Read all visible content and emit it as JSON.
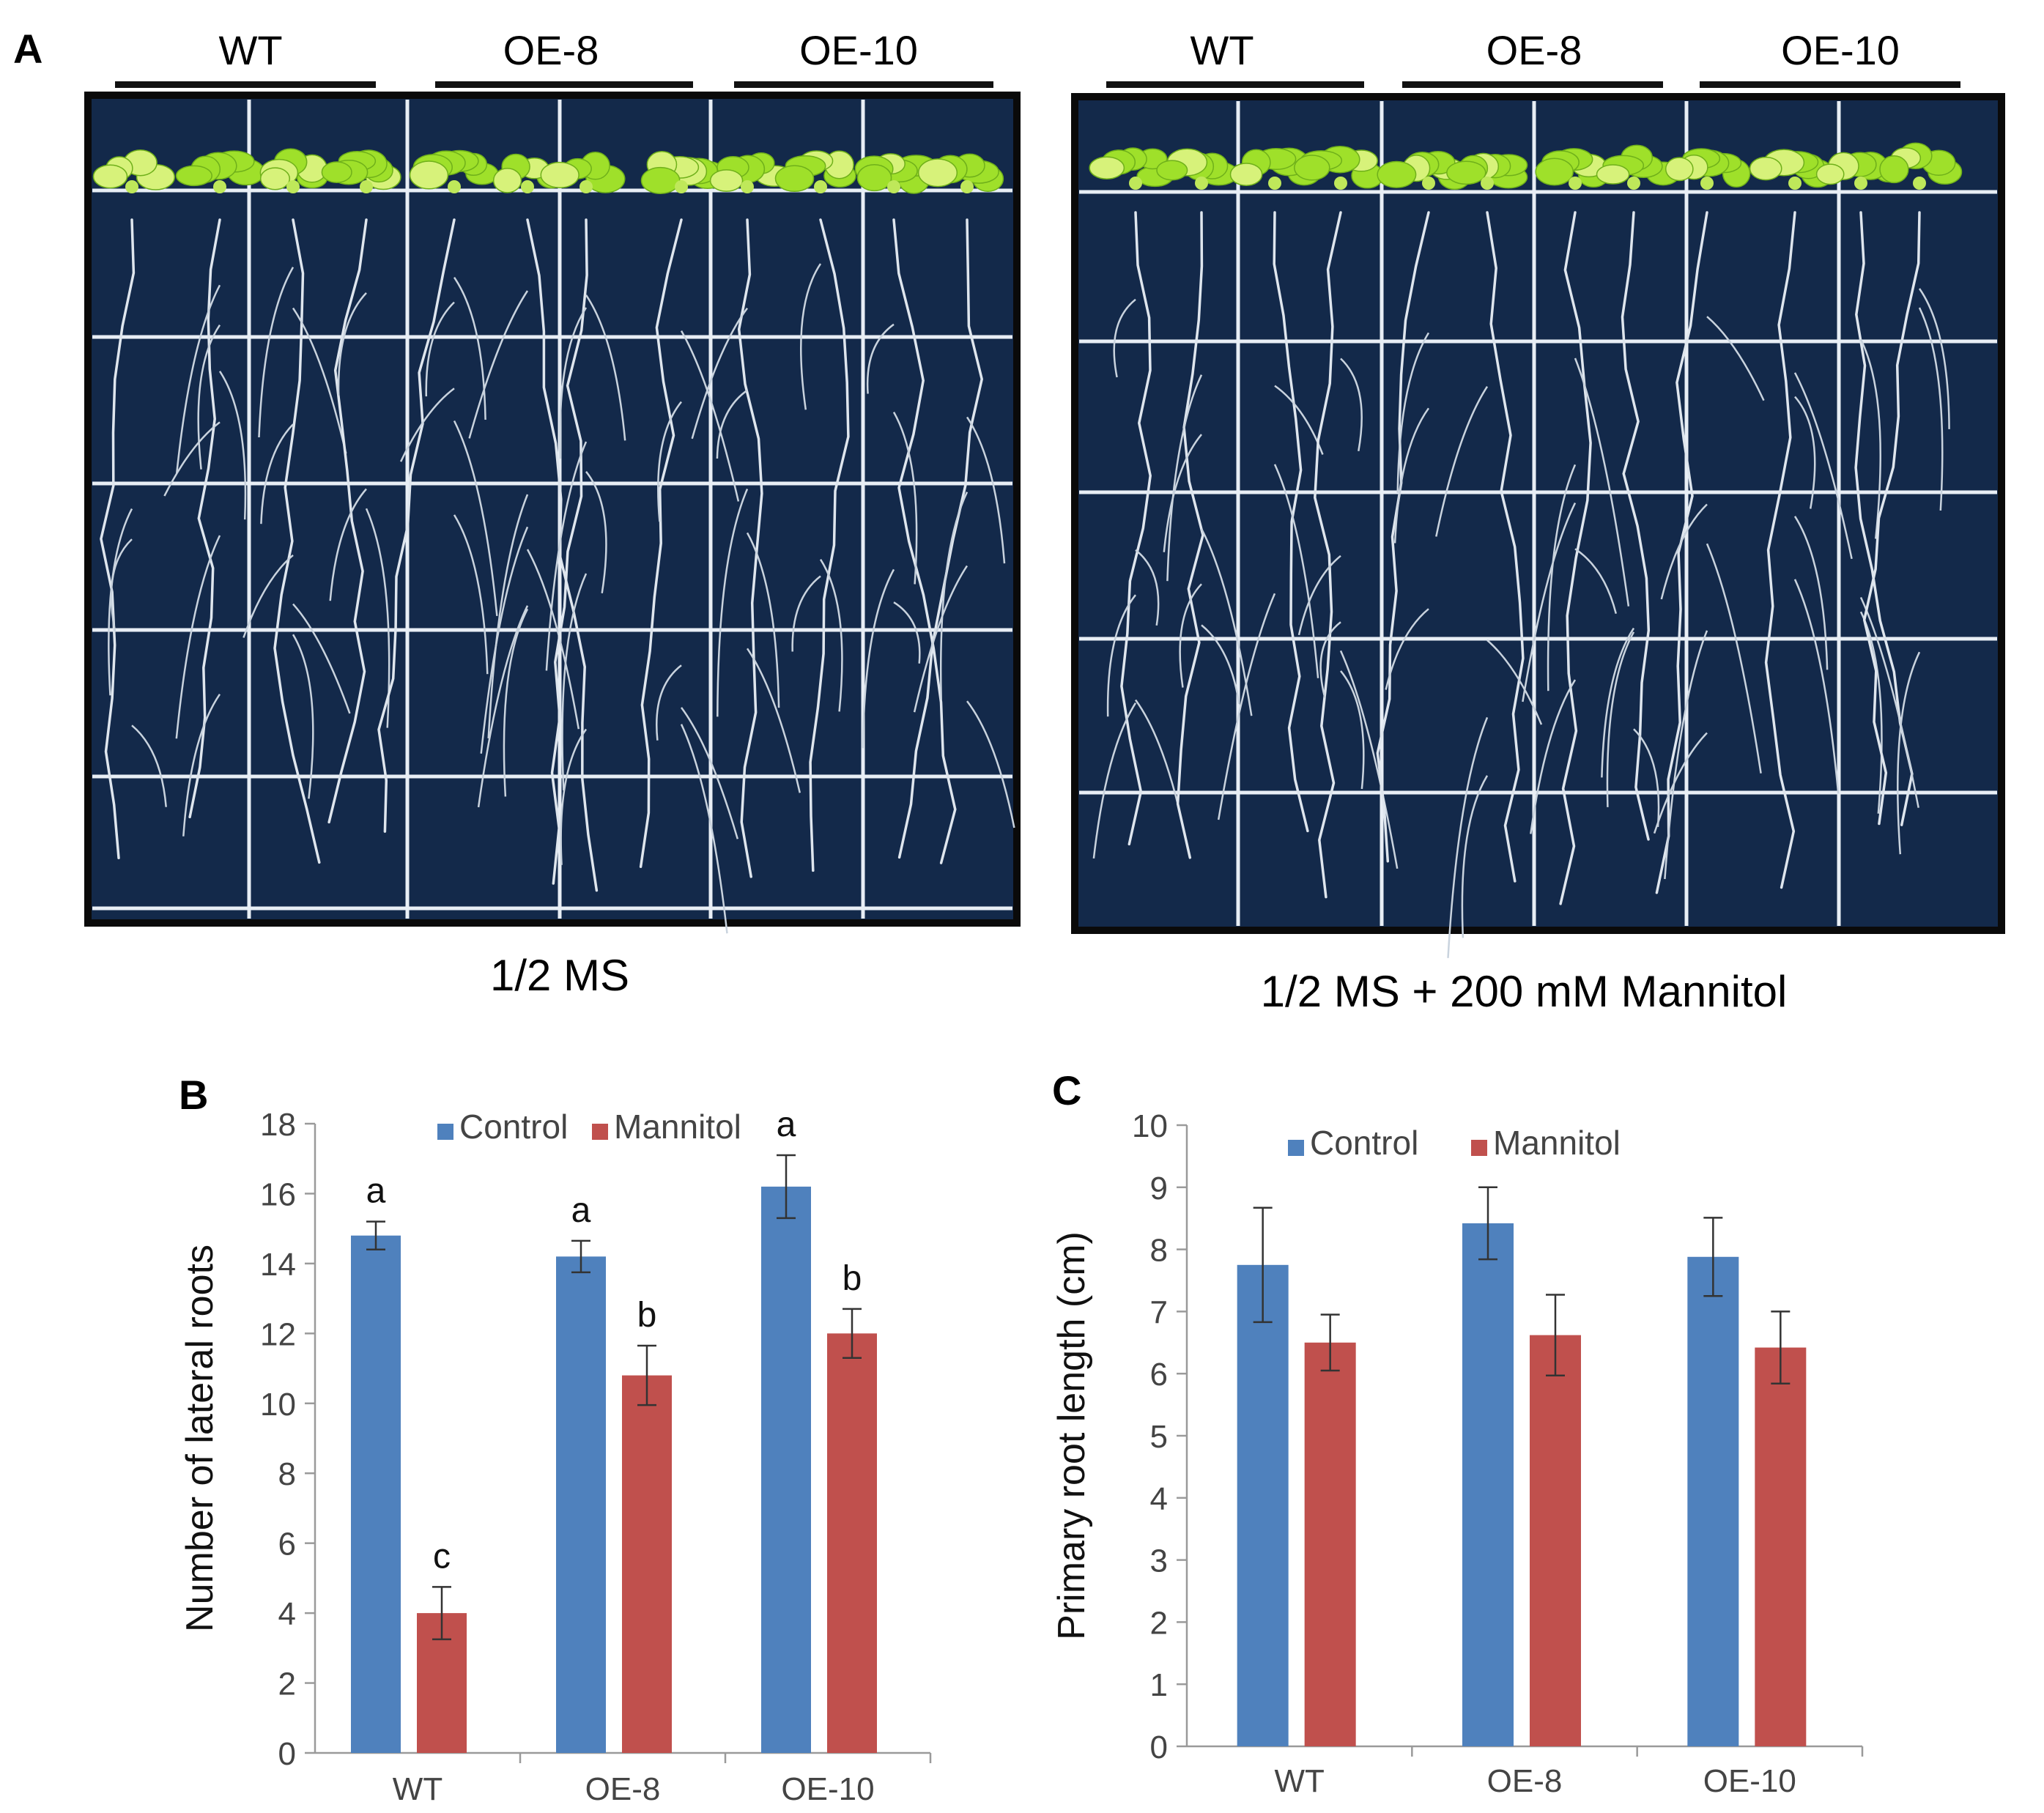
{
  "panel_a": {
    "letter": "A",
    "plates": [
      {
        "caption": "1/2 MS",
        "genotypes": [
          "WT",
          "OE-8",
          "OE-10"
        ]
      },
      {
        "caption": "1/2 MS + 200 mM Mannitol",
        "genotypes": [
          "WT",
          "OE-8",
          "OE-10"
        ]
      }
    ]
  },
  "colors": {
    "control": "#4f81bd",
    "mannitol": "#c0504d",
    "plate_bg": "#13294a",
    "grid": "#e8eef5",
    "leaf": "#9fe02a"
  },
  "chart_data": [
    {
      "id": "B",
      "letter": "B",
      "type": "bar",
      "categories": [
        "WT",
        "OE-8",
        "OE-10"
      ],
      "series": [
        {
          "name": "Control",
          "values": [
            14.8,
            14.2,
            16.2
          ],
          "errors": [
            0.4,
            0.45,
            0.9
          ]
        },
        {
          "name": "Mannitol",
          "values": [
            4.0,
            10.8,
            12.0
          ],
          "errors": [
            0.75,
            0.85,
            0.7
          ]
        }
      ],
      "significance": [
        [
          "a",
          "c"
        ],
        [
          "a",
          "b"
        ],
        [
          "a",
          "b"
        ]
      ],
      "ylabel": "Number of lateral roots",
      "xlabel": "",
      "ylim": [
        0,
        18
      ],
      "yticks": [
        0,
        2,
        4,
        6,
        8,
        10,
        12,
        14,
        16,
        18
      ],
      "legend_position": "top"
    },
    {
      "id": "C",
      "letter": "C",
      "type": "bar",
      "categories": [
        "WT",
        "OE-8",
        "OE-10"
      ],
      "series": [
        {
          "name": "Control",
          "values": [
            7.75,
            8.42,
            7.88
          ],
          "errors": [
            0.92,
            0.58,
            0.63
          ]
        },
        {
          "name": "Mannitol",
          "values": [
            6.5,
            6.62,
            6.42
          ],
          "errors": [
            0.45,
            0.65,
            0.58
          ]
        }
      ],
      "ylabel": "Primary root length (cm)",
      "xlabel": "",
      "ylim": [
        0,
        10
      ],
      "yticks": [
        0,
        1,
        2,
        3,
        4,
        5,
        6,
        7,
        8,
        9,
        10
      ],
      "legend_position": "top"
    }
  ]
}
